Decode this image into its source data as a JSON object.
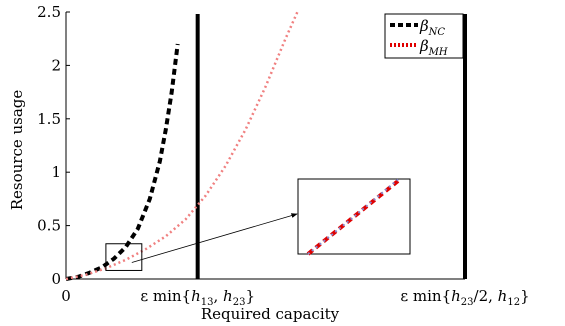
{
  "chart_data": {
    "type": "line",
    "xlabel": "Required capacity",
    "ylabel": "Resource usage",
    "ylim": [
      0,
      2.5
    ],
    "xlim": [
      0,
      1
    ],
    "x_ticks": [
      {
        "x": 0,
        "label": "0"
      },
      {
        "x": 0.33,
        "label_pre": "ε min{",
        "label_a": "h",
        "label_a_sub": "13",
        "label_mid": ", ",
        "label_b": "h",
        "label_b_sub": "23",
        "label_post": "}"
      },
      {
        "x": 1.0,
        "label_pre": "ε min{",
        "label_a": "h",
        "label_a_sub": "23",
        "label_mid": "/2, ",
        "label_b": "h",
        "label_b_sub": "12",
        "label_post": "}"
      }
    ],
    "y_ticks": [
      "0",
      "0.5",
      "1",
      "1.5",
      "2",
      "2.5"
    ],
    "grid": false,
    "legend_position": "top-right",
    "legend": [
      {
        "symbol": "β",
        "subscript": "NC",
        "style": "black dashed",
        "color": "#000000"
      },
      {
        "symbol": "β",
        "subscript": "MH",
        "style": "red dotted",
        "color": "#e00000"
      }
    ],
    "series": [
      {
        "key": "beta_NC",
        "color": "#000000",
        "dash": "dashed",
        "x": [
          0,
          0.03,
          0.06,
          0.09,
          0.12,
          0.15,
          0.18,
          0.21,
          0.235,
          0.25,
          0.265,
          0.28
        ],
        "y": [
          0,
          0.02,
          0.06,
          0.11,
          0.19,
          0.3,
          0.47,
          0.75,
          1.1,
          1.4,
          1.75,
          2.2
        ]
      },
      {
        "key": "beta_MH",
        "color": "#f08080",
        "dash": "dotted",
        "x": [
          0,
          0.05,
          0.1,
          0.15,
          0.2,
          0.25,
          0.3,
          0.35,
          0.4,
          0.45,
          0.5,
          0.55,
          0.58
        ],
        "y": [
          0,
          0.04,
          0.1,
          0.18,
          0.28,
          0.4,
          0.56,
          0.78,
          1.06,
          1.4,
          1.8,
          2.25,
          2.5
        ]
      }
    ],
    "vertical_lines": [
      {
        "x": 0.33,
        "color": "#000000"
      },
      {
        "x": 1.0,
        "color": "#000000"
      }
    ],
    "inset": {
      "source_region": {
        "x": [
          0.1,
          0.19
        ],
        "y": [
          0.08,
          0.33
        ]
      },
      "series": [
        {
          "key": "beta_NC_zoom",
          "color": "#e00000",
          "dash": "dashed",
          "x": [
            0,
            0.5,
            1
          ],
          "y": [
            0,
            0.5,
            1
          ]
        },
        {
          "key": "beta_MH_zoom",
          "color": "#8888cc",
          "dash": "dotted",
          "x": [
            0,
            0.5,
            1
          ],
          "y": [
            0,
            0.5,
            1.02
          ]
        }
      ]
    }
  }
}
